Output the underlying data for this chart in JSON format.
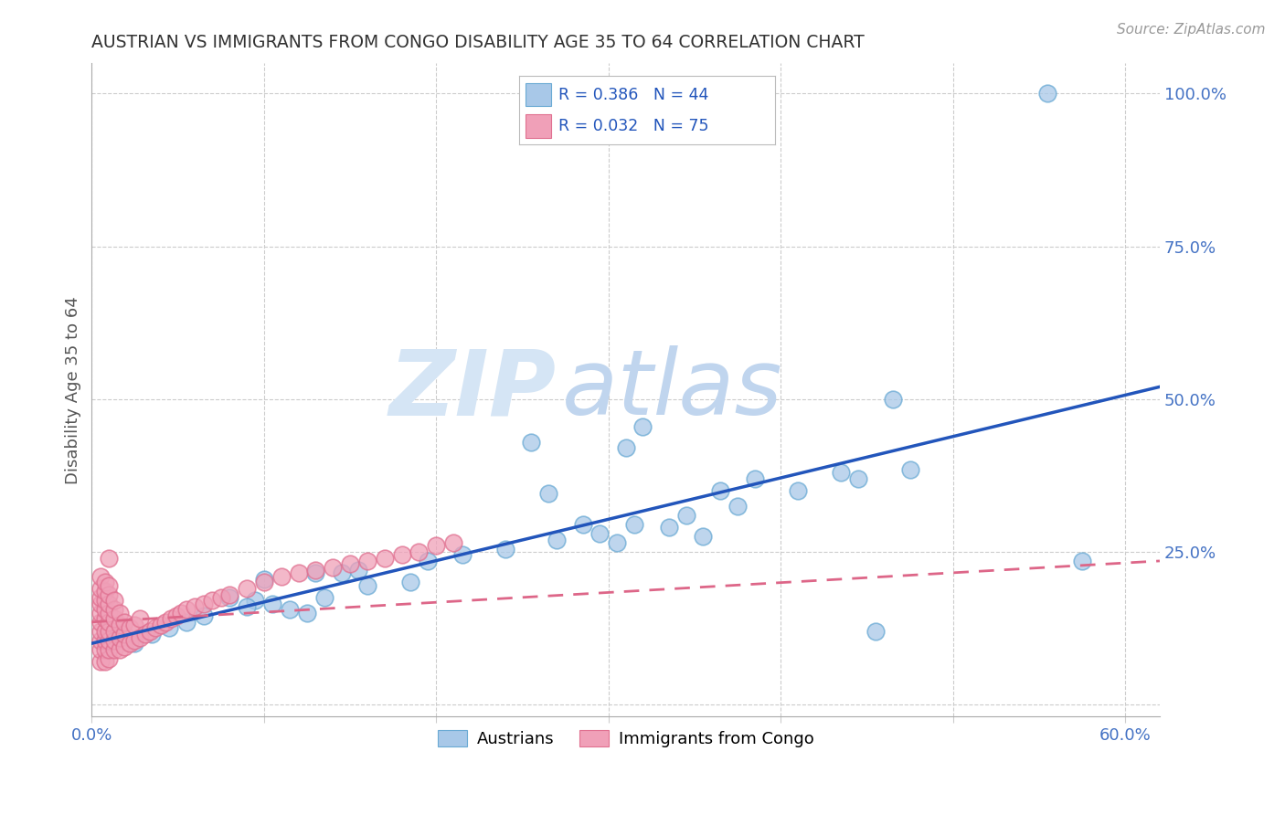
{
  "title": "AUSTRIAN VS IMMIGRANTS FROM CONGO DISABILITY AGE 35 TO 64 CORRELATION CHART",
  "source": "Source: ZipAtlas.com",
  "ylabel": "Disability Age 35 to 64",
  "xlim": [
    0.0,
    0.62
  ],
  "ylim": [
    -0.02,
    1.05
  ],
  "xticks": [
    0.0,
    0.1,
    0.2,
    0.3,
    0.4,
    0.5,
    0.6
  ],
  "xticklabels": [
    "0.0%",
    "",
    "",
    "",
    "",
    "",
    "60.0%"
  ],
  "ytick_positions": [
    0.0,
    0.25,
    0.5,
    0.75,
    1.0
  ],
  "yticklabels": [
    "",
    "25.0%",
    "50.0%",
    "75.0%",
    "100.0%"
  ],
  "blue_color": "#A8C8E8",
  "blue_edge_color": "#6AAAD4",
  "pink_color": "#F0A0B8",
  "pink_edge_color": "#E07090",
  "blue_line_color": "#2255BB",
  "pink_line_color": "#DD6688",
  "watermark_zip_color": "#D5E5F5",
  "watermark_atlas_color": "#C0D5EE",
  "blue_scatter_x": [
    0.555,
    0.1,
    0.135,
    0.16,
    0.185,
    0.13,
    0.145,
    0.155,
    0.195,
    0.215,
    0.24,
    0.27,
    0.295,
    0.315,
    0.345,
    0.375,
    0.41,
    0.445,
    0.475,
    0.575,
    0.08,
    0.095,
    0.105,
    0.115,
    0.125,
    0.09,
    0.065,
    0.055,
    0.045,
    0.035,
    0.025,
    0.31,
    0.32,
    0.255,
    0.265,
    0.285,
    0.305,
    0.335,
    0.355,
    0.365,
    0.385,
    0.435,
    0.455,
    0.465
  ],
  "blue_scatter_y": [
    1.0,
    0.205,
    0.175,
    0.195,
    0.2,
    0.215,
    0.215,
    0.22,
    0.235,
    0.245,
    0.255,
    0.27,
    0.28,
    0.295,
    0.31,
    0.325,
    0.35,
    0.37,
    0.385,
    0.235,
    0.175,
    0.17,
    0.165,
    0.155,
    0.15,
    0.16,
    0.145,
    0.135,
    0.125,
    0.115,
    0.1,
    0.42,
    0.455,
    0.43,
    0.345,
    0.295,
    0.265,
    0.29,
    0.275,
    0.35,
    0.37,
    0.38,
    0.12,
    0.5
  ],
  "pink_scatter_x": [
    0.005,
    0.005,
    0.005,
    0.005,
    0.005,
    0.005,
    0.005,
    0.005,
    0.005,
    0.005,
    0.008,
    0.008,
    0.008,
    0.008,
    0.008,
    0.008,
    0.008,
    0.008,
    0.008,
    0.01,
    0.01,
    0.01,
    0.01,
    0.01,
    0.01,
    0.01,
    0.01,
    0.01,
    0.01,
    0.013,
    0.013,
    0.013,
    0.013,
    0.013,
    0.013,
    0.016,
    0.016,
    0.016,
    0.016,
    0.019,
    0.019,
    0.019,
    0.022,
    0.022,
    0.025,
    0.025,
    0.028,
    0.028,
    0.031,
    0.034,
    0.037,
    0.04,
    0.043,
    0.046,
    0.049,
    0.052,
    0.055,
    0.06,
    0.065,
    0.07,
    0.075,
    0.08,
    0.09,
    0.1,
    0.11,
    0.12,
    0.13,
    0.14,
    0.15,
    0.16,
    0.17,
    0.18,
    0.19,
    0.2,
    0.21
  ],
  "pink_scatter_y": [
    0.07,
    0.09,
    0.105,
    0.12,
    0.135,
    0.15,
    0.165,
    0.175,
    0.19,
    0.21,
    0.07,
    0.09,
    0.105,
    0.12,
    0.14,
    0.155,
    0.17,
    0.185,
    0.2,
    0.075,
    0.09,
    0.105,
    0.12,
    0.135,
    0.15,
    0.165,
    0.18,
    0.195,
    0.24,
    0.09,
    0.105,
    0.12,
    0.14,
    0.155,
    0.17,
    0.09,
    0.11,
    0.13,
    0.15,
    0.095,
    0.115,
    0.135,
    0.1,
    0.125,
    0.105,
    0.13,
    0.11,
    0.14,
    0.115,
    0.12,
    0.125,
    0.13,
    0.135,
    0.14,
    0.145,
    0.15,
    0.155,
    0.16,
    0.165,
    0.17,
    0.175,
    0.18,
    0.19,
    0.2,
    0.21,
    0.215,
    0.22,
    0.225,
    0.23,
    0.235,
    0.24,
    0.245,
    0.25,
    0.26,
    0.265
  ],
  "blue_trend_x": [
    0.0,
    0.62
  ],
  "blue_trend_y": [
    0.1,
    0.52
  ],
  "pink_trend_x": [
    0.0,
    0.62
  ],
  "pink_trend_y": [
    0.135,
    0.235
  ],
  "grid_color": "#CCCCCC",
  "background_color": "#FFFFFF",
  "title_color": "#333333"
}
